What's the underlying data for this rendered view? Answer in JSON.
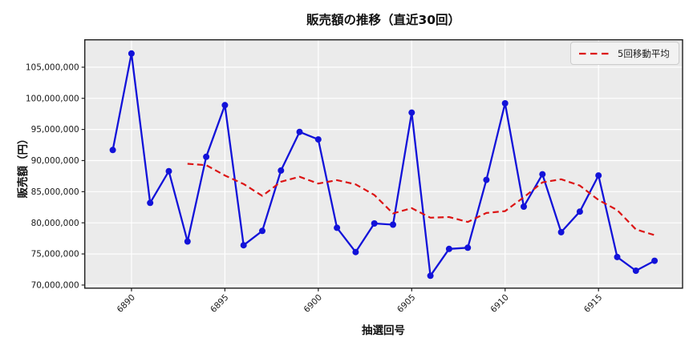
{
  "figure": {
    "title": "販売額の推移（直近30回）",
    "x_axis_label": "抽選回号",
    "y_axis_label": "販売額（円）",
    "legend": {
      "items": [
        {
          "label": "5回移動平均",
          "color": "#dc1414",
          "style": "dashed"
        }
      ]
    }
  },
  "chart_data": {
    "type": "line",
    "title": "販売額の推移（直近30回）",
    "xlabel": "抽選回号",
    "ylabel": "販売額（円）",
    "x": [
      6889,
      6890,
      6891,
      6892,
      6893,
      6894,
      6895,
      6896,
      6897,
      6898,
      6899,
      6900,
      6901,
      6902,
      6903,
      6904,
      6905,
      6906,
      6907,
      6908,
      6909,
      6910,
      6911,
      6912,
      6913,
      6914,
      6915,
      6916,
      6917,
      6918
    ],
    "series": [
      {
        "name": "販売額",
        "color": "#1212d9",
        "line_style": "solid",
        "marker": "circle",
        "values": [
          91700000,
          107200000,
          83200000,
          88300000,
          77000000,
          90600000,
          98900000,
          76400000,
          78700000,
          88400000,
          94600000,
          93400000,
          79200000,
          75300000,
          79900000,
          79700000,
          97700000,
          71500000,
          75800000,
          76000000,
          86900000,
          99200000,
          82600000,
          87800000,
          78500000,
          81800000,
          87600000,
          74500000,
          72300000,
          73900000
        ]
      },
      {
        "name": "5回移動平均",
        "color": "#dc1414",
        "line_style": "dashed",
        "derived": "moving_average",
        "window": 5
      }
    ],
    "x_ticks": [
      6890,
      6895,
      6900,
      6905,
      6910,
      6915
    ],
    "y_ticks": [
      70000000,
      75000000,
      80000000,
      85000000,
      90000000,
      95000000,
      100000000,
      105000000
    ],
    "xlim": [
      6887.5,
      6919.5
    ],
    "ylim": [
      69500000,
      109400000
    ],
    "grid": true,
    "grid_color": "#ffffff",
    "plot_background": "#ebebeb",
    "spine_color": "#1f1f1f",
    "tick_label_color": "#191919",
    "legend_position": "upper right"
  }
}
